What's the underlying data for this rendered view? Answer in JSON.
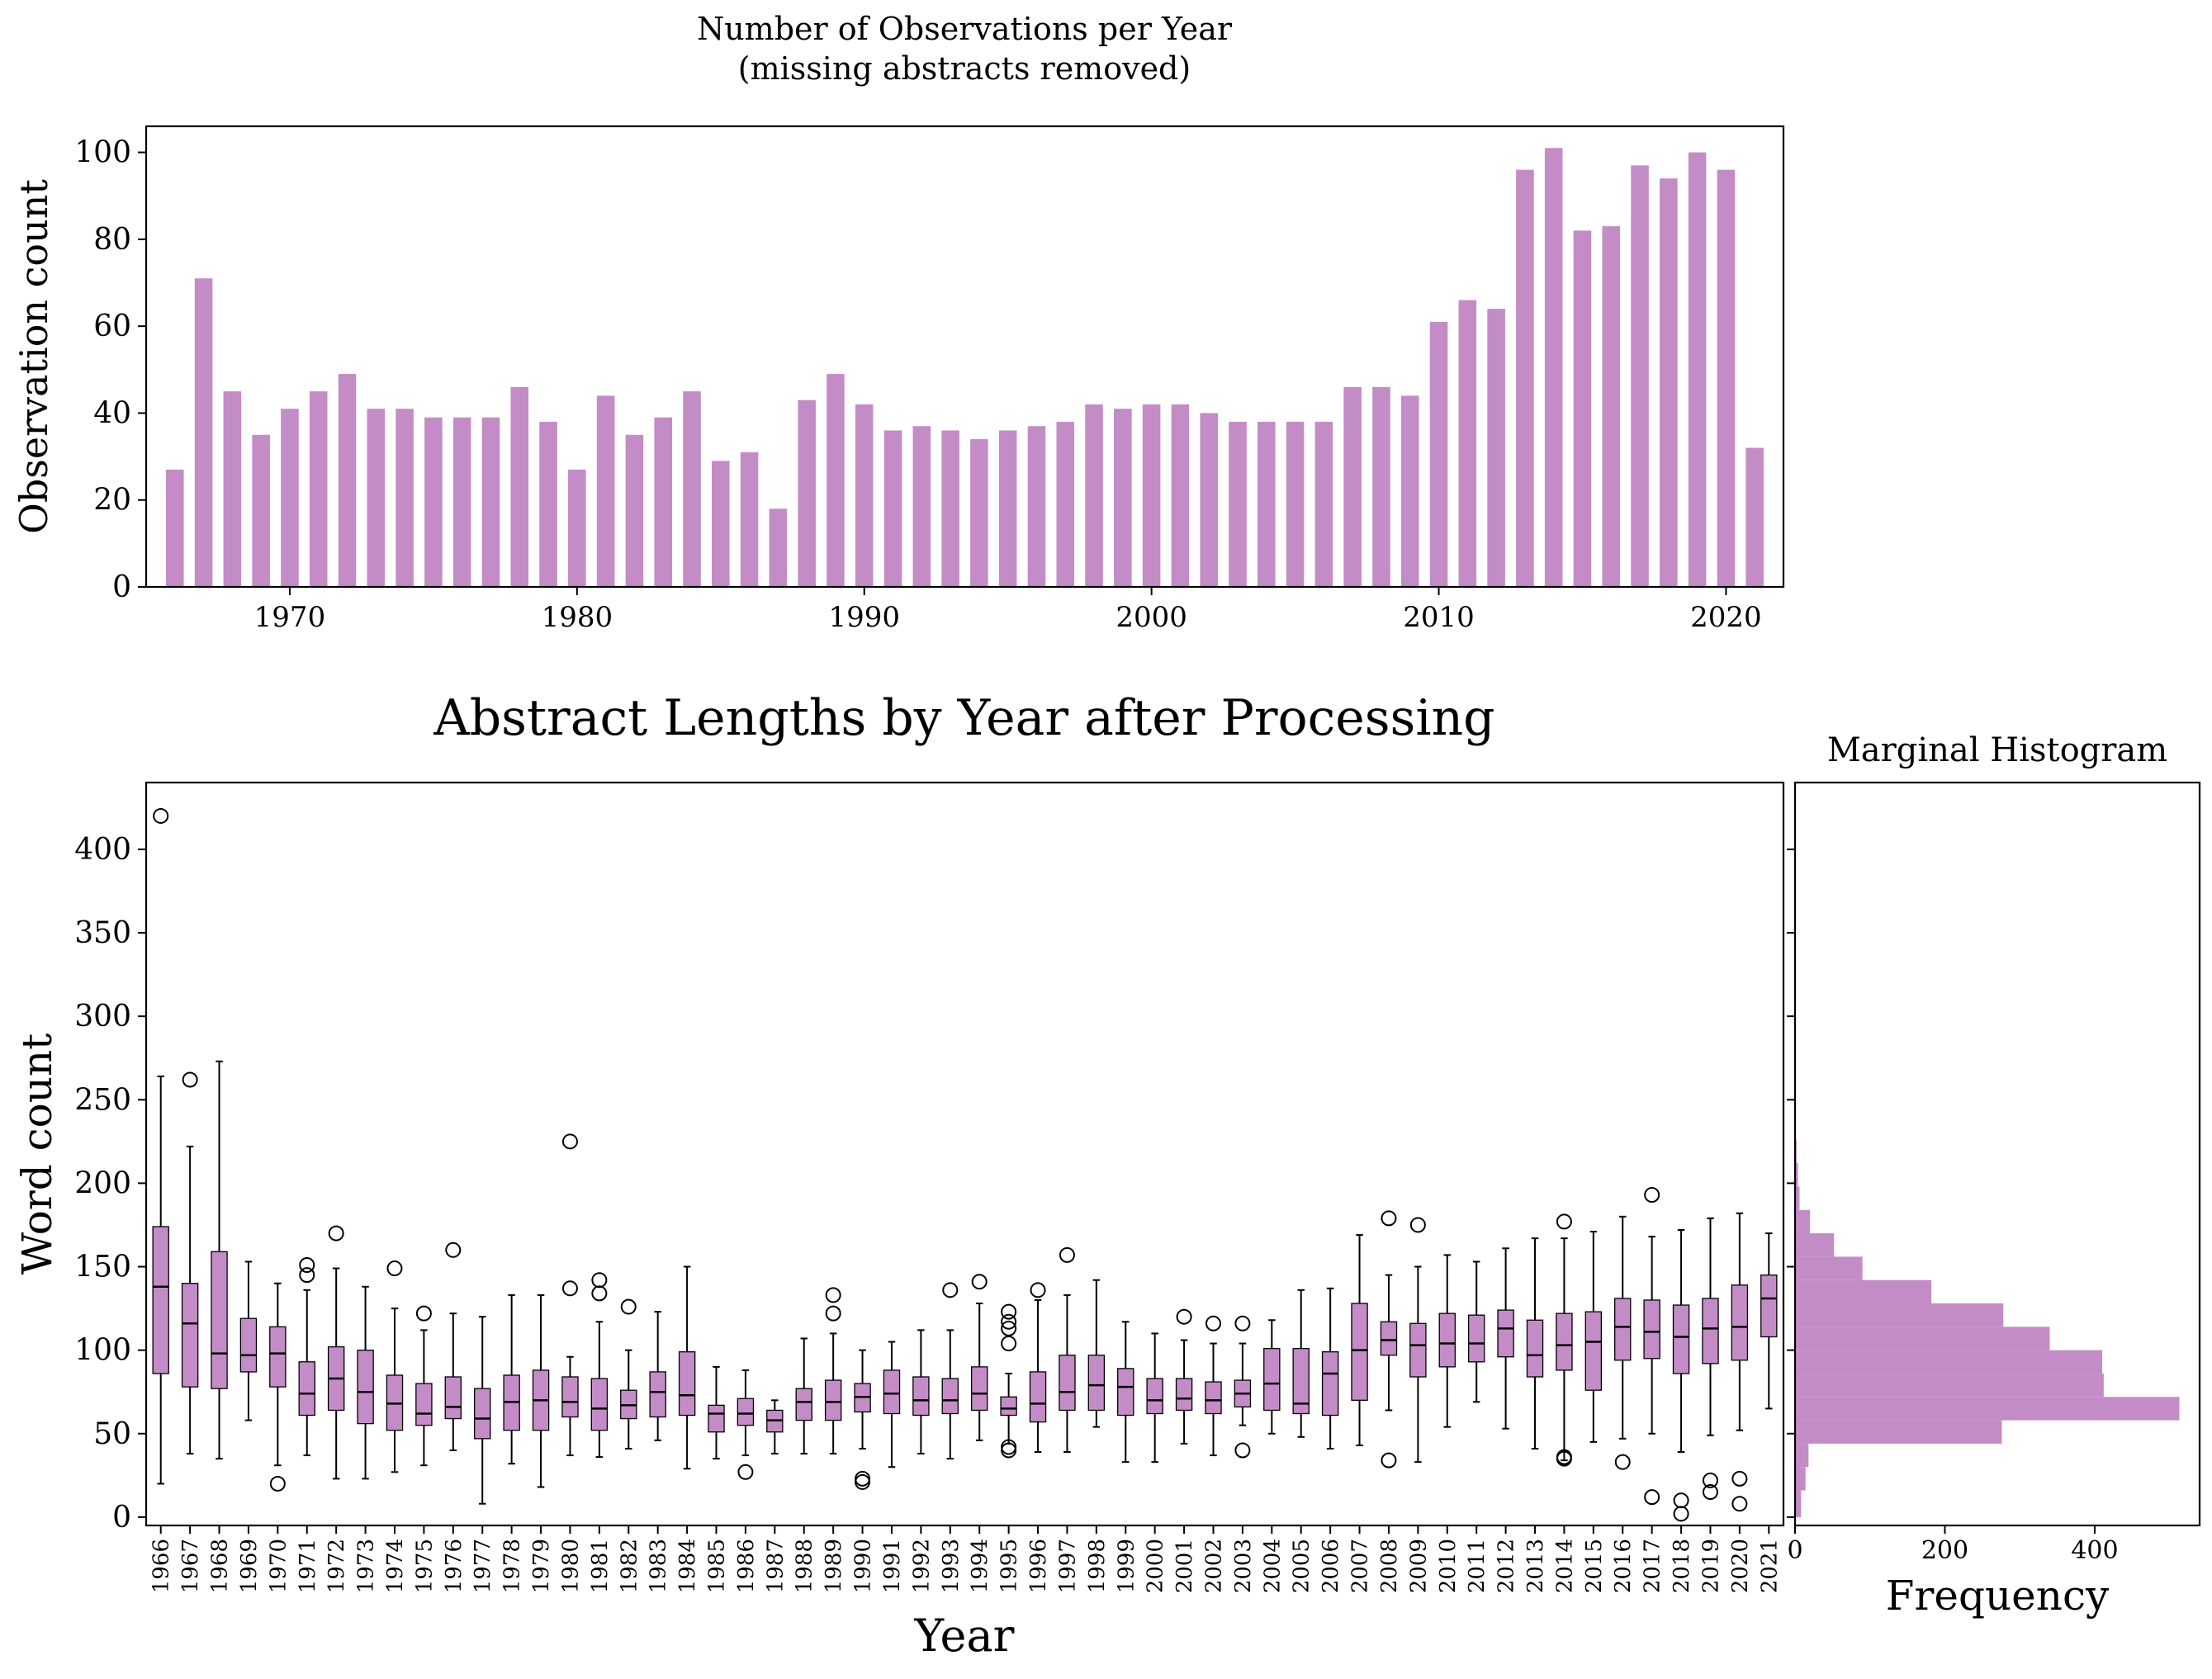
{
  "chart_data": [
    {
      "type": "bar",
      "title": "Number of Observations per Year\n(missing abstracts removed)",
      "xlabel": "",
      "ylabel": "Observation count",
      "color": "#c48cc6",
      "xlim": [
        1965,
        2022
      ],
      "ylim": [
        0,
        106
      ],
      "xticks": [
        1970,
        1980,
        1990,
        2000,
        2010,
        2020
      ],
      "yticks": [
        0,
        20,
        40,
        60,
        80,
        100
      ],
      "x": [
        1966,
        1967,
        1968,
        1969,
        1970,
        1971,
        1972,
        1973,
        1974,
        1975,
        1976,
        1977,
        1978,
        1979,
        1980,
        1981,
        1982,
        1983,
        1984,
        1985,
        1986,
        1987,
        1988,
        1989,
        1990,
        1991,
        1992,
        1993,
        1994,
        1995,
        1996,
        1997,
        1998,
        1999,
        2000,
        2001,
        2002,
        2003,
        2004,
        2005,
        2006,
        2007,
        2008,
        2009,
        2010,
        2011,
        2012,
        2013,
        2014,
        2015,
        2016,
        2017,
        2018,
        2019,
        2020,
        2021
      ],
      "values": [
        27,
        71,
        45,
        35,
        41,
        45,
        49,
        41,
        41,
        39,
        39,
        39,
        46,
        38,
        27,
        44,
        35,
        39,
        45,
        29,
        31,
        18,
        43,
        49,
        42,
        36,
        37,
        36,
        34,
        36,
        37,
        38,
        42,
        41,
        42,
        42,
        40,
        38,
        38,
        38,
        38,
        46,
        46,
        44,
        61,
        66,
        64,
        96,
        101,
        82,
        83,
        97,
        94,
        100,
        96,
        32
      ]
    },
    {
      "type": "boxplot",
      "title": "Abstract Lengths by Year after Processing",
      "xlabel": "Year",
      "ylabel": "Word count",
      "color": "#c48cc6",
      "ylim": [
        -5,
        440
      ],
      "yticks": [
        0,
        50,
        100,
        150,
        200,
        250,
        300,
        350,
        400
      ],
      "categories": [
        "1966",
        "1967",
        "1968",
        "1969",
        "1970",
        "1971",
        "1972",
        "1973",
        "1974",
        "1975",
        "1976",
        "1977",
        "1978",
        "1979",
        "1980",
        "1981",
        "1982",
        "1983",
        "1984",
        "1985",
        "1986",
        "1987",
        "1988",
        "1989",
        "1990",
        "1991",
        "1992",
        "1993",
        "1994",
        "1995",
        "1996",
        "1997",
        "1998",
        "1999",
        "2000",
        "2001",
        "2002",
        "2003",
        "2004",
        "2005",
        "2006",
        "2007",
        "2008",
        "2009",
        "2010",
        "2011",
        "2012",
        "2013",
        "2014",
        "2015",
        "2016",
        "2017",
        "2018",
        "2019",
        "2020",
        "2021"
      ],
      "boxes": [
        {
          "whislo": 20,
          "q1": 86,
          "med": 138,
          "q3": 174,
          "whishi": 264,
          "fliers": [
            420
          ]
        },
        {
          "whislo": 38,
          "q1": 78,
          "med": 116,
          "q3": 140,
          "whishi": 222,
          "fliers": [
            262
          ]
        },
        {
          "whislo": 35,
          "q1": 77,
          "med": 98,
          "q3": 159,
          "whishi": 273,
          "fliers": []
        },
        {
          "whislo": 58,
          "q1": 87,
          "med": 97,
          "q3": 119,
          "whishi": 153,
          "fliers": []
        },
        {
          "whislo": 31,
          "q1": 78,
          "med": 98,
          "q3": 114,
          "whishi": 140,
          "fliers": [
            20
          ]
        },
        {
          "whislo": 37,
          "q1": 61,
          "med": 74,
          "q3": 93,
          "whishi": 136,
          "fliers": [
            145,
            151
          ]
        },
        {
          "whislo": 23,
          "q1": 64,
          "med": 83,
          "q3": 102,
          "whishi": 149,
          "fliers": [
            170
          ]
        },
        {
          "whislo": 23,
          "q1": 56,
          "med": 75,
          "q3": 100,
          "whishi": 138,
          "fliers": []
        },
        {
          "whislo": 27,
          "q1": 52,
          "med": 68,
          "q3": 85,
          "whishi": 125,
          "fliers": [
            149
          ]
        },
        {
          "whislo": 31,
          "q1": 55,
          "med": 62,
          "q3": 80,
          "whishi": 112,
          "fliers": [
            122
          ]
        },
        {
          "whislo": 40,
          "q1": 59,
          "med": 66,
          "q3": 84,
          "whishi": 122,
          "fliers": [
            160
          ]
        },
        {
          "whislo": 8,
          "q1": 47,
          "med": 59,
          "q3": 77,
          "whishi": 120,
          "fliers": []
        },
        {
          "whislo": 32,
          "q1": 52,
          "med": 69,
          "q3": 85,
          "whishi": 133,
          "fliers": []
        },
        {
          "whislo": 18,
          "q1": 52,
          "med": 70,
          "q3": 88,
          "whishi": 133,
          "fliers": []
        },
        {
          "whislo": 37,
          "q1": 60,
          "med": 69,
          "q3": 84,
          "whishi": 96,
          "fliers": [
            137,
            225
          ]
        },
        {
          "whislo": 36,
          "q1": 52,
          "med": 65,
          "q3": 83,
          "whishi": 117,
          "fliers": [
            134,
            142
          ]
        },
        {
          "whislo": 41,
          "q1": 59,
          "med": 67,
          "q3": 76,
          "whishi": 100,
          "fliers": [
            126
          ]
        },
        {
          "whislo": 46,
          "q1": 60,
          "med": 75,
          "q3": 87,
          "whishi": 123,
          "fliers": []
        },
        {
          "whislo": 29,
          "q1": 61,
          "med": 73,
          "q3": 99,
          "whishi": 150,
          "fliers": []
        },
        {
          "whislo": 35,
          "q1": 51,
          "med": 62,
          "q3": 67,
          "whishi": 90,
          "fliers": []
        },
        {
          "whislo": 37,
          "q1": 55,
          "med": 62,
          "q3": 71,
          "whishi": 88,
          "fliers": [
            27
          ]
        },
        {
          "whislo": 38,
          "q1": 51,
          "med": 58,
          "q3": 64,
          "whishi": 70,
          "fliers": []
        },
        {
          "whislo": 38,
          "q1": 58,
          "med": 69,
          "q3": 77,
          "whishi": 107,
          "fliers": []
        },
        {
          "whislo": 38,
          "q1": 58,
          "med": 69,
          "q3": 82,
          "whishi": 110,
          "fliers": [
            122,
            133
          ]
        },
        {
          "whislo": 41,
          "q1": 63,
          "med": 72,
          "q3": 80,
          "whishi": 100,
          "fliers": [
            21,
            23
          ]
        },
        {
          "whislo": 30,
          "q1": 62,
          "med": 74,
          "q3": 88,
          "whishi": 105,
          "fliers": []
        },
        {
          "whislo": 38,
          "q1": 61,
          "med": 70,
          "q3": 84,
          "whishi": 112,
          "fliers": []
        },
        {
          "whislo": 35,
          "q1": 62,
          "med": 70,
          "q3": 83,
          "whishi": 112,
          "fliers": [
            136
          ]
        },
        {
          "whislo": 46,
          "q1": 64,
          "med": 74,
          "q3": 90,
          "whishi": 128,
          "fliers": [
            141
          ]
        },
        {
          "whislo": 44,
          "q1": 61,
          "med": 65,
          "q3": 72,
          "whishi": 86,
          "fliers": [
            40,
            42,
            104,
            113,
            117,
            123
          ]
        },
        {
          "whislo": 39,
          "q1": 57,
          "med": 68,
          "q3": 87,
          "whishi": 130,
          "fliers": [
            136
          ]
        },
        {
          "whislo": 39,
          "q1": 64,
          "med": 75,
          "q3": 97,
          "whishi": 133,
          "fliers": [
            157
          ]
        },
        {
          "whislo": 54,
          "q1": 64,
          "med": 79,
          "q3": 97,
          "whishi": 142,
          "fliers": []
        },
        {
          "whislo": 33,
          "q1": 61,
          "med": 78,
          "q3": 89,
          "whishi": 117,
          "fliers": []
        },
        {
          "whislo": 33,
          "q1": 62,
          "med": 70,
          "q3": 83,
          "whishi": 110,
          "fliers": []
        },
        {
          "whislo": 44,
          "q1": 64,
          "med": 71,
          "q3": 83,
          "whishi": 106,
          "fliers": [
            120
          ]
        },
        {
          "whislo": 37,
          "q1": 62,
          "med": 70,
          "q3": 81,
          "whishi": 104,
          "fliers": [
            116
          ]
        },
        {
          "whislo": 55,
          "q1": 66,
          "med": 74,
          "q3": 82,
          "whishi": 104,
          "fliers": [
            40,
            116
          ]
        },
        {
          "whislo": 50,
          "q1": 64,
          "med": 80,
          "q3": 101,
          "whishi": 118,
          "fliers": []
        },
        {
          "whislo": 48,
          "q1": 62,
          "med": 68,
          "q3": 101,
          "whishi": 136,
          "fliers": []
        },
        {
          "whislo": 41,
          "q1": 61,
          "med": 86,
          "q3": 99,
          "whishi": 137,
          "fliers": []
        },
        {
          "whislo": 43,
          "q1": 70,
          "med": 100,
          "q3": 128,
          "whishi": 169,
          "fliers": []
        },
        {
          "whislo": 64,
          "q1": 97,
          "med": 106,
          "q3": 117,
          "whishi": 145,
          "fliers": [
            34,
            179
          ]
        },
        {
          "whislo": 33,
          "q1": 84,
          "med": 103,
          "q3": 116,
          "whishi": 150,
          "fliers": [
            175
          ]
        },
        {
          "whislo": 54,
          "q1": 90,
          "med": 104,
          "q3": 122,
          "whishi": 157,
          "fliers": []
        },
        {
          "whislo": 69,
          "q1": 93,
          "med": 104,
          "q3": 121,
          "whishi": 153,
          "fliers": []
        },
        {
          "whislo": 53,
          "q1": 96,
          "med": 113,
          "q3": 124,
          "whishi": 161,
          "fliers": []
        },
        {
          "whislo": 41,
          "q1": 84,
          "med": 97,
          "q3": 118,
          "whishi": 167,
          "fliers": []
        },
        {
          "whislo": 34,
          "q1": 88,
          "med": 103,
          "q3": 122,
          "whishi": 167,
          "fliers": [
            35,
            36,
            177
          ]
        },
        {
          "whislo": 45,
          "q1": 76,
          "med": 105,
          "q3": 123,
          "whishi": 171,
          "fliers": []
        },
        {
          "whislo": 47,
          "q1": 94,
          "med": 114,
          "q3": 131,
          "whishi": 180,
          "fliers": [
            33
          ]
        },
        {
          "whislo": 50,
          "q1": 95,
          "med": 111,
          "q3": 130,
          "whishi": 168,
          "fliers": [
            12,
            193
          ]
        },
        {
          "whislo": 39,
          "q1": 86,
          "med": 108,
          "q3": 127,
          "whishi": 172,
          "fliers": [
            2,
            10
          ]
        },
        {
          "whislo": 49,
          "q1": 92,
          "med": 113,
          "q3": 131,
          "whishi": 179,
          "fliers": [
            15,
            22
          ]
        },
        {
          "whislo": 52,
          "q1": 94,
          "med": 114,
          "q3": 139,
          "whishi": 182,
          "fliers": [
            8,
            23
          ]
        },
        {
          "whislo": 65,
          "q1": 108,
          "med": 131,
          "q3": 145,
          "whishi": 170,
          "fliers": []
        }
      ]
    },
    {
      "type": "histogram",
      "orientation": "horizontal",
      "title": "Marginal Histogram",
      "xlabel": "Frequency",
      "ylabel": "",
      "color": "#c48cc6",
      "xlim": [
        0,
        540
      ],
      "xticks": [
        0,
        200,
        400
      ],
      "bins": [
        {
          "lo": 0,
          "hi": 16,
          "count": 8
        },
        {
          "lo": 16,
          "hi": 30,
          "count": 14
        },
        {
          "lo": 30,
          "hi": 44,
          "count": 18
        },
        {
          "lo": 44,
          "hi": 58,
          "count": 276
        },
        {
          "lo": 58,
          "hi": 72,
          "count": 513
        },
        {
          "lo": 72,
          "hi": 86,
          "count": 412
        },
        {
          "lo": 86,
          "hi": 100,
          "count": 410
        },
        {
          "lo": 100,
          "hi": 114,
          "count": 340
        },
        {
          "lo": 114,
          "hi": 128,
          "count": 278
        },
        {
          "lo": 128,
          "hi": 142,
          "count": 182
        },
        {
          "lo": 142,
          "hi": 156,
          "count": 90
        },
        {
          "lo": 156,
          "hi": 170,
          "count": 52
        },
        {
          "lo": 170,
          "hi": 184,
          "count": 20
        },
        {
          "lo": 184,
          "hi": 198,
          "count": 6
        },
        {
          "lo": 198,
          "hi": 212,
          "count": 4
        },
        {
          "lo": 212,
          "hi": 226,
          "count": 2
        }
      ]
    }
  ]
}
